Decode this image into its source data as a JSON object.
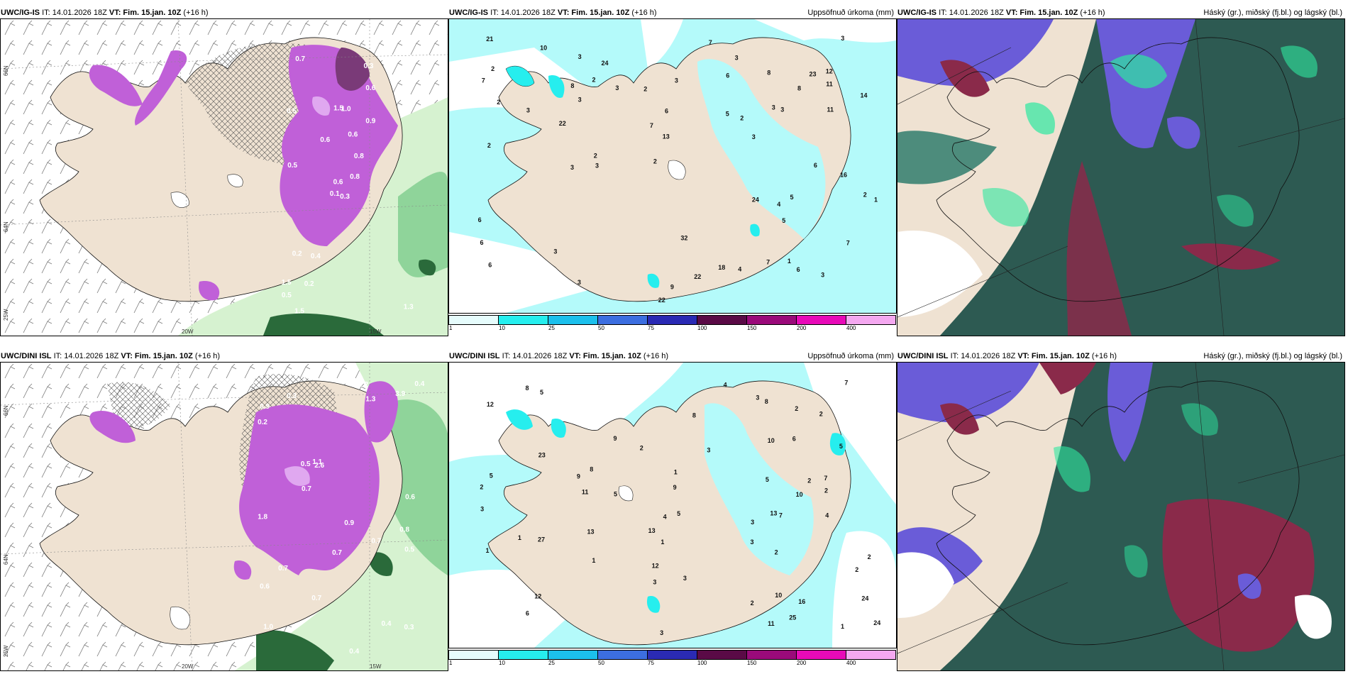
{
  "rows": [
    {
      "model": "UWC/IG-IS",
      "init": "IT: 14.01.2026 18Z",
      "vt_label": "VT:",
      "valid": "Fim. 15.jan. 10Z",
      "lead": "(+16 h)",
      "precip_labels": [
        "0.3",
        "0.5",
        "0.6",
        "1.5",
        "0.8",
        "0.4",
        "0.3",
        "1.0",
        "0.6",
        "0.8",
        "0.7",
        "1.3",
        "0.5",
        "0.2",
        "0.1",
        "0.9",
        "1.5",
        "1.5",
        "0.6",
        "0.2",
        "0.6",
        "0.5",
        "0.2"
      ],
      "accum_labels": [
        "2",
        "3",
        "3",
        "9",
        "23",
        "22",
        "24",
        "3",
        "12",
        "1",
        "2",
        "2",
        "3",
        "3",
        "2",
        "3",
        "2",
        "2",
        "3",
        "18",
        "6",
        "16",
        "13",
        "32",
        "8",
        "22",
        "11",
        "3",
        "10",
        "3",
        "6",
        "4",
        "3",
        "3",
        "2",
        "3",
        "3",
        "6",
        "7",
        "6",
        "3",
        "8",
        "7",
        "1",
        "22",
        "14",
        "7",
        "6",
        "7",
        "5",
        "6",
        "2",
        "2",
        "4",
        "3",
        "24",
        "6",
        "5",
        "7",
        "5",
        "8",
        "21",
        "11"
      ]
    },
    {
      "model": "UWC/DINI ISL",
      "init": "IT: 14.01.2026 18Z",
      "vt_label": "VT:",
      "valid": "Fim. 15.jan. 10Z",
      "lead": "(+16 h)",
      "precip_labels": [
        "0.7",
        "0.8",
        "1.0",
        "0.3",
        "2.6",
        "0.4",
        "0.6",
        "1.3",
        "0.5",
        "0.4",
        "0.2",
        "1.8",
        "0.9",
        "0.3",
        "0.7",
        "0.6",
        "0.7",
        "0.9",
        "1.1",
        "0.7",
        "0.4",
        "3.9",
        "0.7",
        "0.5",
        "1.2"
      ],
      "accum_labels": [
        "3",
        "2",
        "2",
        "2",
        "2",
        "6",
        "7",
        "1",
        "24",
        "25",
        "13",
        "3",
        "1",
        "2",
        "1",
        "1",
        "2",
        "1",
        "2",
        "2",
        "1",
        "3",
        "5",
        "3",
        "2",
        "12",
        "23",
        "10",
        "24",
        "27",
        "5",
        "4",
        "5",
        "10",
        "5",
        "6",
        "3",
        "5",
        "7",
        "11",
        "13",
        "13",
        "8",
        "3",
        "2",
        "9",
        "7",
        "8",
        "4",
        "5",
        "12",
        "9",
        "9",
        "16",
        "12",
        "11",
        "8",
        "8",
        "10",
        "3",
        "4",
        "3"
      ]
    }
  ],
  "accum_title": "Uppsöfnuð úrkoma (mm)",
  "cloud_title": "Háský (gr.), miðský (fj.bl.) og lágský (bl.)",
  "lon_labels": [
    "20W",
    "15W"
  ],
  "lat_labels": [
    "66N",
    "64N",
    "25W"
  ],
  "colorbar": {
    "ticks": [
      "1",
      "10",
      "25",
      "50",
      "75",
      "100",
      "150",
      "200",
      "400"
    ],
    "colors": [
      "#e6fcfc",
      "#26eeee",
      "#1cc0ec",
      "#3c6ee0",
      "#2a2ab4",
      "#5a0a46",
      "#9a0a7a",
      "#e80ab8",
      "#f4a8f0"
    ]
  },
  "colors": {
    "land": "#efe2d2",
    "precip_light": "#d8a8e0",
    "precip_mid": "#c060d8",
    "precip_dark": "#7a3a78",
    "sea_green_light": "#d6f2d0",
    "sea_green": "#8fd49a",
    "sea_green_dark": "#2a6a3a",
    "accum_cyan": "#b4fafa",
    "cloud_dark": "#2d5a52",
    "cloud_mid": "#4d8c7c",
    "cloud_blue": "#6a5cd8",
    "cloud_red": "#8a2a4a",
    "cloud_green": "#2ee8a0"
  }
}
